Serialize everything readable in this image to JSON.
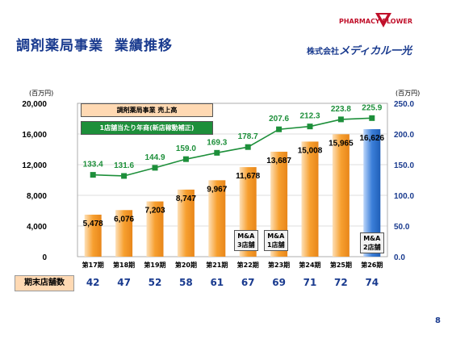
{
  "header": {
    "title": "調剤薬局事業",
    "subtitle": "業績推移",
    "logo_top": "PHARMACY FLOWER",
    "company_prefix": "株式会社",
    "company_name": "メディカル一光"
  },
  "chart_data": {
    "type": "bar",
    "categories": [
      "第17期",
      "第18期",
      "第19期",
      "第20期",
      "第21期",
      "第22期",
      "第23期",
      "第24期",
      "第25期",
      "第26期"
    ],
    "series": [
      {
        "name": "調剤薬局事業 売上高",
        "values": [
          5478,
          6076,
          7203,
          8747,
          9967,
          11678,
          13687,
          15008,
          15965,
          16626
        ],
        "labels": [
          "5,478",
          "6,076",
          "7,203",
          "8,747",
          "9,967",
          "11,678",
          "13,687",
          "15,008",
          "15,965",
          "16,626"
        ]
      },
      {
        "name": "1店舗当たり年商(新店稼動補正)",
        "values": [
          133.4,
          131.6,
          144.9,
          159.0,
          169.3,
          178.7,
          207.6,
          212.3,
          223.8,
          225.9
        ],
        "labels": [
          "133.4",
          "131.6",
          "144.9",
          "159.0",
          "169.3",
          "178.7",
          "207.6",
          "212.3",
          "223.8",
          "225.9"
        ]
      }
    ],
    "y_left": {
      "unit": "(百万円)",
      "ylim": [
        0,
        20000
      ],
      "ticks": [
        "0",
        "4,000",
        "8,000",
        "12,000",
        "16,000",
        "20,000"
      ]
    },
    "y_right": {
      "unit": "(百万円)",
      "ylim": [
        0,
        250
      ],
      "ticks": [
        "0.0",
        "50.0",
        "100.0",
        "150.0",
        "200.0",
        "250.0"
      ]
    },
    "bar_colors": {
      "normal": "#f7a030",
      "highlight": "#3c7fd9"
    },
    "line_color": "#1d8f3a",
    "annotations": [
      {
        "category": "第22期",
        "text": [
          "M&A",
          "3店舗"
        ]
      },
      {
        "category": "第23期",
        "text": [
          "M&A",
          "1店舗"
        ]
      },
      {
        "category": "第26期",
        "text": [
          "M&A",
          "2店舗"
        ]
      }
    ]
  },
  "stores": {
    "label": "期末店舗数",
    "values": [
      "42",
      "47",
      "52",
      "58",
      "61",
      "67",
      "69",
      "71",
      "72",
      "74"
    ]
  },
  "page_number": "8"
}
